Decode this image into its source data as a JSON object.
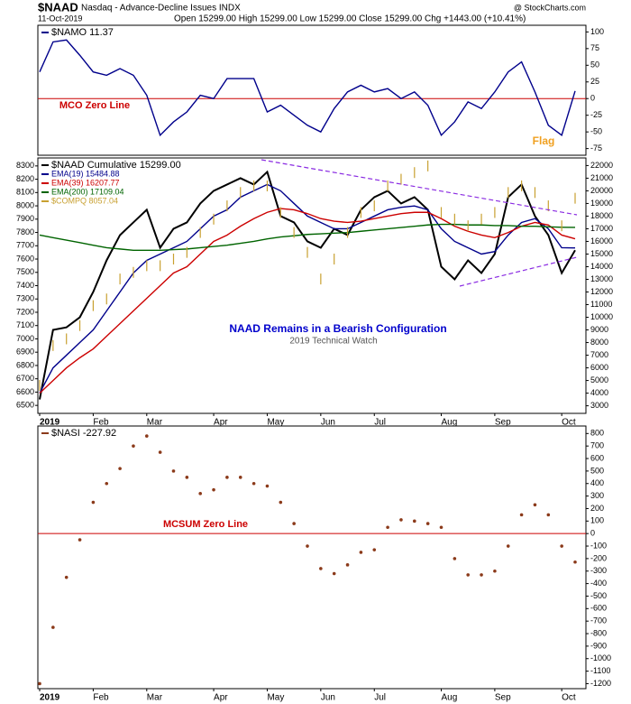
{
  "header": {
    "symbol": "$NAAD",
    "name": "Nasdaq - Advance-Decline Issues INDX",
    "date": "11-Oct-2019",
    "quote": "Open 15299.00 High 15299.00 Low 15299.00 Close 15299.00 Chg +1443.00 (+10.41%)",
    "source": "@ StockCharts.com"
  },
  "chart_data": [
    {
      "type": "line",
      "ylim": [
        -85,
        110
      ],
      "yticks": [
        100,
        75,
        50,
        25,
        0,
        -25,
        -50,
        -75
      ],
      "hline": 0,
      "annotations": [
        {
          "text": "MCO Zero Line",
          "color": "#cc0000"
        },
        {
          "text": "Flag",
          "color": "#f0a020"
        }
      ],
      "series": [
        {
          "name": "$NAMO 11.37",
          "color": "#00008b",
          "style": "line",
          "values": [
            40,
            85,
            88,
            65,
            40,
            35,
            45,
            35,
            5,
            -55,
            -35,
            -20,
            5,
            0,
            30,
            30,
            30,
            -20,
            -10,
            -25,
            -40,
            -50,
            -15,
            10,
            20,
            10,
            15,
            0,
            10,
            -10,
            -55,
            -35,
            -5,
            -15,
            10,
            40,
            55,
            10,
            -40,
            -55,
            11.37
          ]
        }
      ]
    },
    {
      "type": "line",
      "ylim": [
        2400,
        22600
      ],
      "yticks": [
        3000,
        4000,
        5000,
        6000,
        7000,
        8000,
        9000,
        10000,
        11000,
        12000,
        13000,
        14000,
        15000,
        16000,
        17000,
        18000,
        19000,
        20000,
        21000,
        22000
      ],
      "y2lim": [
        6440,
        8360
      ],
      "y2ticks": [
        6500,
        6600,
        6700,
        6800,
        6900,
        7000,
        7100,
        7200,
        7300,
        7400,
        7500,
        7600,
        7700,
        7800,
        7900,
        8000,
        8100,
        8200,
        8300
      ],
      "categories": [
        "2019",
        null,
        null,
        null,
        "Feb",
        null,
        null,
        null,
        "Mar",
        null,
        null,
        null,
        null,
        "Apr",
        null,
        null,
        null,
        "May",
        null,
        null,
        null,
        "Jun",
        null,
        null,
        null,
        "Jul",
        null,
        null,
        null,
        null,
        "Aug",
        null,
        null,
        null,
        "Sep",
        null,
        null,
        null,
        null,
        "Oct",
        null
      ],
      "annotations": [
        {
          "text": "NAAD Remains in a Bearish Configuration",
          "color": "#0000cc"
        },
        {
          "text": "2019 Technical Watch",
          "color": "#555555"
        }
      ],
      "series": [
        {
          "name": "$NAAD Cumulative 15299.00",
          "color": "#000000",
          "style": "line",
          "values": [
            3500,
            9000,
            9200,
            10000,
            12000,
            14500,
            16500,
            17500,
            18500,
            15500,
            17000,
            17500,
            19000,
            20000,
            20500,
            21000,
            20500,
            21500,
            18000,
            17500,
            16000,
            15500,
            17000,
            16500,
            18500,
            19500,
            20000,
            19000,
            19500,
            18500,
            14000,
            13000,
            14500,
            13500,
            15000,
            19500,
            20500,
            18000,
            16500,
            13500,
            15299
          ]
        },
        {
          "name": "EMA(19) 15484.88",
          "color": "#00008b",
          "style": "line",
          "values": [
            4000,
            6000,
            7000,
            8000,
            9000,
            10500,
            12000,
            13500,
            14500,
            15000,
            15500,
            16000,
            17000,
            18000,
            18500,
            19500,
            20000,
            20500,
            20000,
            19000,
            18000,
            17500,
            17000,
            17000,
            17500,
            18000,
            18500,
            18700,
            18800,
            18500,
            17000,
            16000,
            15500,
            15000,
            15200,
            16500,
            17500,
            17800,
            17000,
            15500,
            15484.88
          ]
        },
        {
          "name": "EMA(39) 16207.77",
          "color": "#cc0000",
          "style": "line",
          "values": [
            4000,
            5000,
            6000,
            6800,
            7500,
            8500,
            9500,
            10500,
            11500,
            12500,
            13500,
            14000,
            15000,
            16000,
            16500,
            17200,
            17800,
            18300,
            18600,
            18500,
            18200,
            17800,
            17600,
            17500,
            17600,
            17800,
            18000,
            18200,
            18300,
            18300,
            17800,
            17200,
            16800,
            16500,
            16300,
            16700,
            17200,
            17500,
            17300,
            16500,
            16207.77
          ]
        },
        {
          "name": "EMA(200) 17109.04",
          "color": "#006400",
          "style": "line",
          "values": [
            16500,
            16300,
            16100,
            15900,
            15700,
            15500,
            15400,
            15300,
            15300,
            15300,
            15350,
            15400,
            15500,
            15600,
            15700,
            15850,
            16000,
            16200,
            16350,
            16450,
            16550,
            16600,
            16650,
            16700,
            16800,
            16900,
            17000,
            17100,
            17200,
            17300,
            17350,
            17350,
            17300,
            17300,
            17250,
            17250,
            17200,
            17200,
            17150,
            17120,
            17109.04
          ]
        },
        {
          "name": "$COMPQ 8057.04",
          "color": "#c8a030",
          "style": "bars",
          "axis": "y2",
          "values": [
            6650,
            6950,
            7000,
            7100,
            7250,
            7300,
            7450,
            7500,
            7550,
            7550,
            7600,
            7650,
            7800,
            7900,
            8000,
            8100,
            8150,
            8150,
            7950,
            7800,
            7650,
            7450,
            7600,
            7800,
            7950,
            8000,
            8150,
            8200,
            8250,
            8300,
            7950,
            7900,
            7850,
            7900,
            7950,
            8100,
            8150,
            8100,
            8000,
            7850,
            8057.04
          ]
        }
      ]
    },
    {
      "type": "scatter",
      "ylim": [
        -1240,
        860
      ],
      "yticks": [
        800,
        700,
        600,
        500,
        400,
        300,
        200,
        100,
        0,
        -100,
        -200,
        -300,
        -400,
        -500,
        -600,
        -700,
        -800,
        -900,
        -1000,
        -1100,
        -1200
      ],
      "hline": 0,
      "categories": [
        "2019",
        null,
        null,
        null,
        "Feb",
        null,
        null,
        null,
        "Mar",
        null,
        null,
        null,
        null,
        "Apr",
        null,
        null,
        null,
        "May",
        null,
        null,
        null,
        "Jun",
        null,
        null,
        null,
        "Jul",
        null,
        null,
        null,
        null,
        "Aug",
        null,
        null,
        null,
        "Sep",
        null,
        null,
        null,
        null,
        "Oct",
        null
      ],
      "annotations": [
        {
          "text": "MCSUM Zero Line",
          "color": "#cc0000"
        }
      ],
      "series": [
        {
          "name": "$NASI -227.92",
          "color": "#8b3a1a",
          "style": "dots",
          "values": [
            -1200,
            -750,
            -350,
            -50,
            250,
            400,
            520,
            700,
            780,
            650,
            500,
            450,
            320,
            350,
            450,
            450,
            400,
            380,
            250,
            80,
            -100,
            -280,
            -320,
            -250,
            -150,
            -130,
            50,
            110,
            100,
            80,
            50,
            -200,
            -330,
            -330,
            -300,
            -100,
            150,
            230,
            150,
            -100,
            -227.92
          ]
        }
      ]
    }
  ]
}
